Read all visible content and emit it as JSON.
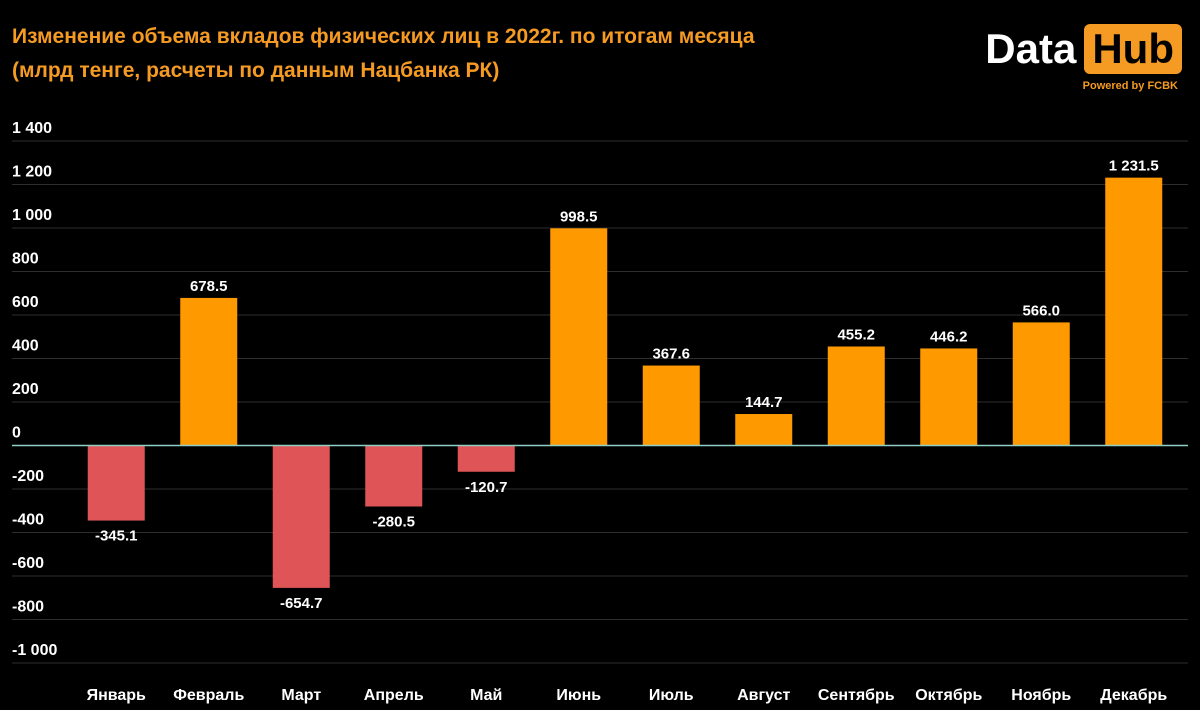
{
  "header": {
    "title_line1": "Изменение объема вкладов физических лиц в 2022г. по итогам месяца",
    "title_line2": "(млрд тенге, расчеты по данным Нацбанка РК)"
  },
  "logo": {
    "word1": "Data",
    "word2": "Hub",
    "tagline": "Powered by FCBK"
  },
  "colors": {
    "accent": "#f59a23",
    "positive": "#ff9900",
    "negative": "#df5557",
    "grid": "#2e2e2e",
    "zero_line": "#8fd0c6"
  },
  "chart_data": {
    "type": "bar",
    "title": "Изменение объема вкладов физических лиц в 2022г. по итогам месяца",
    "subtitle": "(млрд тенге, расчеты по данным Нацбанка РК)",
    "categories": [
      "Январь",
      "Февраль",
      "Март",
      "Апрель",
      "Май",
      "Июнь",
      "Июль",
      "Август",
      "Сентябрь",
      "Октябрь",
      "Ноябрь",
      "Декабрь"
    ],
    "values": [
      -345.1,
      678.5,
      -654.7,
      -280.5,
      -120.7,
      998.5,
      367.6,
      144.7,
      455.2,
      446.2,
      566.0,
      1231.5
    ],
    "data_labels": [
      "-345.1",
      "678.5",
      "-654.7",
      "-280.5",
      "-120.7",
      "998.5",
      "367.6",
      "144.7",
      "455.2",
      "446.2",
      "566.0",
      "1 231.5"
    ],
    "yticks": [
      1400,
      1200,
      1000,
      800,
      600,
      400,
      200,
      0,
      -200,
      -400,
      -600,
      -800,
      -1000
    ],
    "ytick_labels": [
      "1 400",
      "1 200",
      "1 000",
      "800",
      "600",
      "400",
      "200",
      "0",
      "-200",
      "-400",
      "-600",
      "-800",
      "-1 000"
    ],
    "ylim": [
      -1000,
      1400
    ],
    "grid": true,
    "legend": "none"
  }
}
